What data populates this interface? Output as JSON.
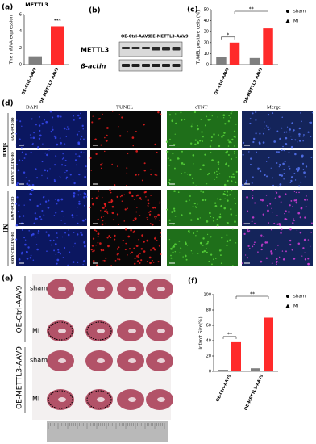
{
  "panel_labels": [
    "(a)",
    "(b)",
    "(c)",
    "(d)",
    "(e)",
    "(f)"
  ],
  "blot": {
    "lanes": [
      "OE-Ctrl-AAV9",
      "OE-METTL3-AAV9"
    ],
    "rows": [
      "METTL3",
      "β-actin"
    ]
  },
  "staining": {
    "columns": [
      "DAPI",
      "TUNEL",
      "cTNT",
      "Merge"
    ],
    "groups": [
      "sham",
      "MI"
    ],
    "rows": [
      "OE-Ctrl-AAV9",
      "OE-METTL3-AAV9"
    ]
  },
  "hearts": {
    "groups": [
      "OE-Ctrl-AAV9",
      "OE-METTL3-AAV9"
    ],
    "rows": [
      "sham",
      "MI"
    ]
  },
  "chart_data": [
    {
      "type": "bar",
      "title": "METTL3",
      "y_label": "The mRNA expression",
      "categories": [
        "OE-Ctrl-AAV9",
        "OE-METTL3-AAV9"
      ],
      "values": [
        1,
        4.6
      ],
      "colors": [
        "#7f7f7f",
        "#ff2a2a"
      ],
      "ylim": [
        0,
        6
      ],
      "yticks": [
        0,
        2,
        4,
        6
      ],
      "annotations": [
        "***"
      ]
    },
    {
      "type": "grouped_bar",
      "y_label": "TUNEL positive cells (%)",
      "categories": [
        "OE-Ctrl-AAV9",
        "OE-METTL3-AAV9"
      ],
      "series": [
        {
          "name": "sham",
          "color": "#7f7f7f",
          "marker": "circle",
          "values": [
            7,
            6
          ]
        },
        {
          "name": "MI",
          "color": "#ff2a2a",
          "marker": "triangle",
          "values": [
            20,
            33
          ]
        }
      ],
      "ylim": [
        0,
        50
      ],
      "yticks": [
        0,
        10,
        20,
        30,
        40,
        50
      ],
      "annotations": [
        "*",
        "**"
      ]
    },
    {
      "type": "grouped_bar",
      "y_label": "Infarct Size(%)",
      "categories": [
        "OE-Ctrl-AAV9",
        "OE-METTL3-AAV9"
      ],
      "series": [
        {
          "name": "sham",
          "color": "#7f7f7f",
          "marker": "circle",
          "values": [
            2,
            4
          ]
        },
        {
          "name": "MI",
          "color": "#ff2a2a",
          "marker": "triangle",
          "values": [
            38,
            70
          ]
        }
      ],
      "ylim": [
        0,
        100
      ],
      "yticks": [
        0,
        20,
        40,
        60,
        80,
        100
      ],
      "annotations": [
        "**",
        "**"
      ]
    }
  ]
}
